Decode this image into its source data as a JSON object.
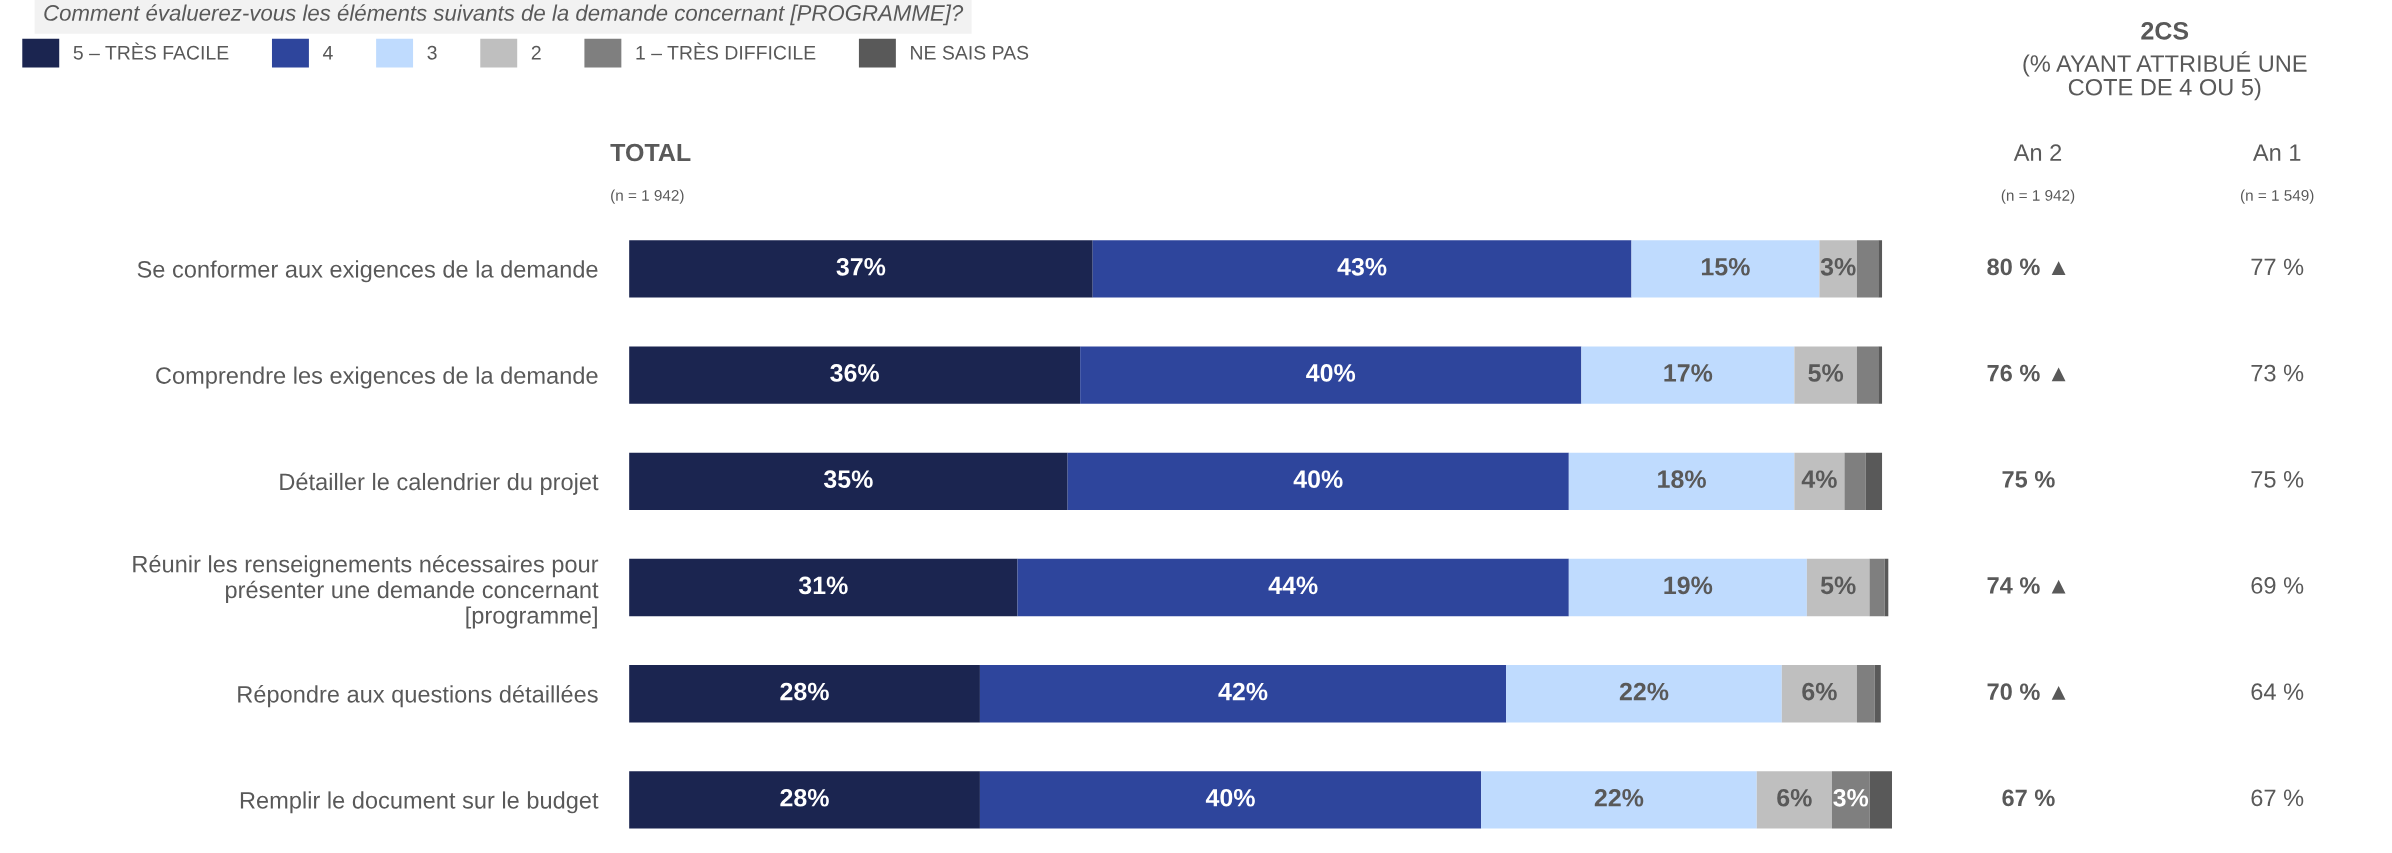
{
  "chart_data": [
    {
      "type": "bar",
      "orientation": "horizontal",
      "stacked": true,
      "title": "Comment évaluerez-vous les éléments suivants de la demande concernant [PROGRAMME]?",
      "subtitle": "TOTAL",
      "annotations": [
        "(n = 1 942)"
      ],
      "categories": [
        "Se conformer aux exigences de la demande",
        "Comprendre les exigences de la demande",
        "Détailler le calendrier du projet",
        "Réunir les renseignements nécessaires pour\nprésenter une demande concernant\n[programme]",
        "Répondre aux questions détaillées",
        "Remplir le document sur le budget"
      ],
      "series": [
        {
          "name": "5 – TRÈS FACILE",
          "color": "#1b2550",
          "values": [
            37,
            36,
            35,
            31,
            28,
            28
          ],
          "value_labels": [
            "37%",
            "36%",
            "35%",
            "31%",
            "28%",
            "28%"
          ]
        },
        {
          "name": "4",
          "color": "#2e459c",
          "values": [
            43,
            40,
            40,
            44,
            42,
            40
          ],
          "value_labels": [
            "43%",
            "40%",
            "40%",
            "44%",
            "42%",
            "40%"
          ]
        },
        {
          "name": "3",
          "color": "#bfdbfe",
          "values": [
            15,
            17,
            18,
            19,
            22,
            22
          ],
          "value_labels": [
            "15%",
            "17%",
            "18%",
            "19%",
            "22%",
            "22%"
          ]
        },
        {
          "name": "2",
          "color": "#bfbfbf",
          "values": [
            3,
            5,
            4,
            5,
            6,
            6
          ],
          "value_labels": [
            "3%",
            "5%",
            "4%",
            "5%",
            "6%",
            "6%"
          ]
        },
        {
          "name": "1 – TRÈS DIFFICILE",
          "color": "#7f7f7f",
          "values": [
            1.7,
            1.7,
            1.7,
            1.2,
            1.4,
            3
          ],
          "value_labels": [
            null,
            null,
            null,
            null,
            null,
            "3%"
          ]
        },
        {
          "name": "NE SAIS PAS",
          "color": "#595959",
          "values": [
            0.3,
            0.3,
            1.3,
            0.3,
            0.5,
            1.8
          ],
          "value_labels": [
            null,
            null,
            null,
            null,
            null,
            null
          ]
        }
      ],
      "legend": "top left",
      "grid": false
    },
    {
      "type": "other",
      "title": "2CS",
      "subtitle": "(% AYANT ATTRIBUÉ UNE\nCOTE DE 4 OU 5)",
      "annotations": [
        "An 2",
        "(n = 1 942)",
        "An 1",
        "(n = 1 549)",
        "80 % ▲",
        "77 %",
        "76 % ▲",
        "73 %",
        "75 %",
        "75 %",
        "74 % ▲",
        "69 %",
        "70 % ▲",
        "64 %",
        "67 %",
        "67 %"
      ]
    }
  ]
}
